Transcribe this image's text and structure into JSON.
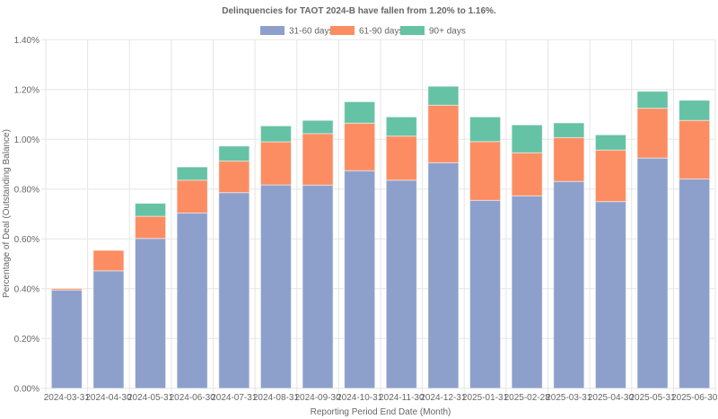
{
  "chart_data": {
    "type": "bar",
    "stacked": true,
    "title": "Delinquencies for TAOT 2024-B have fallen from 1.20% to 1.16%.",
    "xlabel": "Reporting Period End Date (Month)",
    "ylabel": "Percentage of Deal (Outstanding Balance)",
    "ylim": [
      0,
      1.4
    ],
    "yticks": [
      "0.00%",
      "0.20%",
      "0.40%",
      "0.60%",
      "0.80%",
      "1.00%",
      "1.20%",
      "1.40%"
    ],
    "ytick_values": [
      0,
      0.2,
      0.4,
      0.6,
      0.8,
      1.0,
      1.2,
      1.4
    ],
    "grid": true,
    "legend_position": "top-center",
    "categories": [
      "2024-03-31",
      "2024-04-30",
      "2024-05-31",
      "2024-06-30",
      "2024-07-31",
      "2024-08-31",
      "2024-09-30",
      "2024-10-31",
      "2024-11-30",
      "2024-12-31",
      "2025-01-31",
      "2025-02-28",
      "2025-03-31",
      "2025-04-30",
      "2025-05-31",
      "2025-06-30"
    ],
    "series": [
      {
        "name": "31-60 days",
        "color": "#8da0cb",
        "values": [
          0.395,
          0.472,
          0.602,
          0.704,
          0.786,
          0.817,
          0.816,
          0.874,
          0.836,
          0.906,
          0.755,
          0.773,
          0.831,
          0.75,
          0.925,
          0.841
        ]
      },
      {
        "name": "61-90 days",
        "color": "#fc8d62",
        "values": [
          0.006,
          0.082,
          0.089,
          0.132,
          0.127,
          0.173,
          0.207,
          0.191,
          0.177,
          0.231,
          0.236,
          0.173,
          0.176,
          0.207,
          0.2,
          0.235
        ]
      },
      {
        "name": "90+ days",
        "color": "#66c2a5",
        "values": [
          0.0,
          0.0,
          0.052,
          0.053,
          0.06,
          0.064,
          0.053,
          0.086,
          0.077,
          0.076,
          0.099,
          0.112,
          0.059,
          0.061,
          0.068,
          0.081
        ]
      }
    ]
  }
}
